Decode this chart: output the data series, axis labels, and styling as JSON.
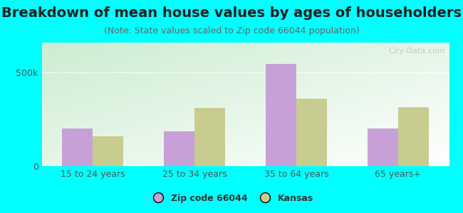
{
  "title": "Breakdown of mean house values by ages of householders",
  "subtitle": "(Note: State values scaled to Zip code 66044 population)",
  "categories": [
    "15 to 24 years",
    "25 to 34 years",
    "35 to 64 years",
    "65 years+"
  ],
  "zip_values": [
    200000,
    185000,
    545000,
    200000
  ],
  "kansas_values": [
    160000,
    310000,
    360000,
    315000
  ],
  "zip_color": "#C8A0D8",
  "kansas_color": "#C8CC90",
  "background_outer": "#00FFFF",
  "yticks": [
    0,
    500000
  ],
  "ytick_labels": [
    "0",
    "500k"
  ],
  "ymax": 660000,
  "legend_zip_label": "Zip code 66044",
  "legend_kansas_label": "Kansas",
  "title_fontsize": 14,
  "subtitle_fontsize": 9,
  "watermark": "City-Data.com"
}
